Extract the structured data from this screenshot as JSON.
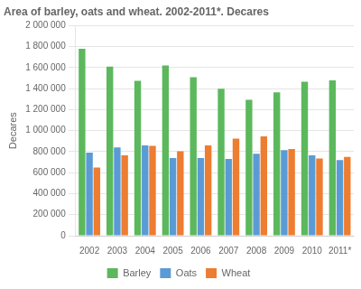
{
  "chart_data": {
    "type": "bar",
    "title": "Area of barley, oats and wheat. 2002-2011*. Decares",
    "ylabel": "Decares",
    "categories": [
      "2002",
      "2003",
      "2004",
      "2005",
      "2006",
      "2007",
      "2008",
      "2009",
      "2010",
      "2011*"
    ],
    "series": [
      {
        "name": "Barley",
        "color": "#5cb85c",
        "values": [
          1780000,
          1610000,
          1475000,
          1620000,
          1510000,
          1400000,
          1295000,
          1365000,
          1465000,
          1480000
        ]
      },
      {
        "name": "Oats",
        "color": "#5b9bd5",
        "values": [
          790000,
          840000,
          860000,
          740000,
          740000,
          730000,
          780000,
          815000,
          765000,
          720000
        ]
      },
      {
        "name": "Wheat",
        "color": "#ed7d31",
        "values": [
          650000,
          765000,
          855000,
          805000,
          860000,
          925000,
          945000,
          825000,
          735000,
          750000
        ]
      }
    ],
    "ylim": [
      0,
      2000000
    ],
    "yticks": [
      0,
      {
        "value": 200000,
        "label": "200 000"
      },
      {
        "value": 400000,
        "label": "400 000"
      },
      {
        "value": 600000,
        "label": "600 000"
      },
      {
        "value": 800000,
        "label": "800 000"
      },
      {
        "value": 1000000,
        "label": "1 000 000"
      },
      {
        "value": 1200000,
        "label": "1 200 000"
      },
      {
        "value": 1400000,
        "label": "1 400 000"
      },
      {
        "value": 1600000,
        "label": "1 600 000"
      },
      {
        "value": 1800000,
        "label": "1 800 000"
      },
      {
        "value": 2000000,
        "label": "2 000 000"
      }
    ],
    "grid": true,
    "legend": "bottom"
  }
}
